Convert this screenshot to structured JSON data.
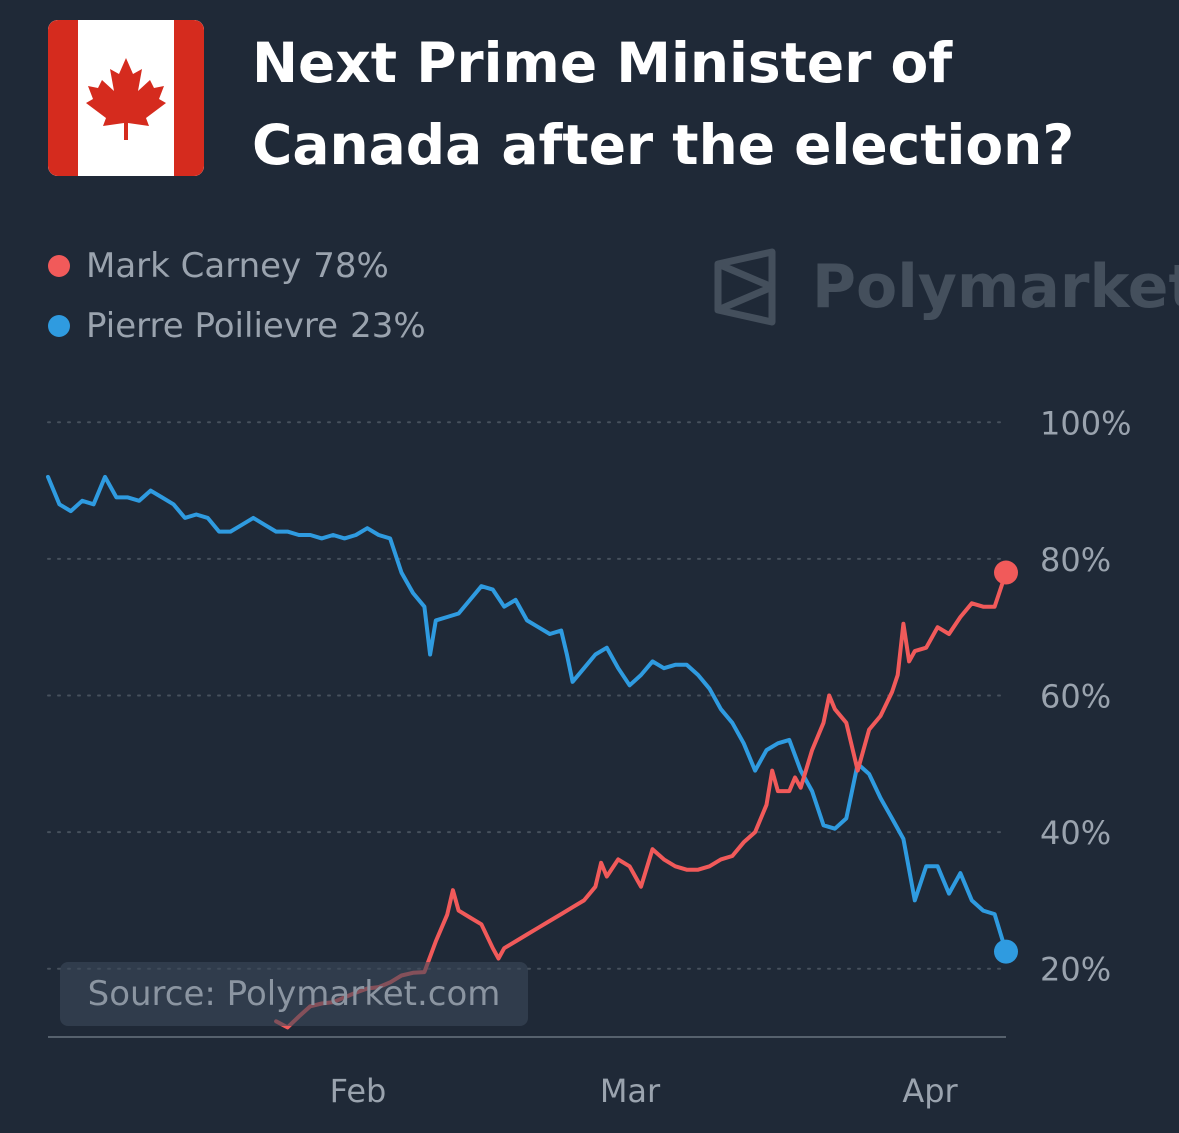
{
  "header": {
    "title": "Next Prime Minister of Canada after the election?",
    "flag_icon": "canada-flag-icon"
  },
  "brand": {
    "name": "Polymarket",
    "logo_icon": "polymarket-logo-icon"
  },
  "source_badge": "Source: Polymarket.com",
  "colors": {
    "background": "#1f2937",
    "carney": "#f15a5a",
    "poilievre": "#2f9be0",
    "axis_text": "#9aa3ae",
    "grid": "#46505c"
  },
  "chart_data": {
    "type": "line",
    "title": "Next Prime Minister of Canada after the election?",
    "xlabel": "",
    "ylabel": "",
    "x_ticks": [
      "Feb",
      "Mar",
      "Apr"
    ],
    "y_ticks": [
      "100%",
      "80%",
      "60%",
      "40%",
      "20%"
    ],
    "ylim": [
      10,
      100
    ],
    "grid": true,
    "legend_position": "top-left",
    "series": [
      {
        "name": "Mark Carney",
        "current_label": "78%",
        "color": "#f15a5a",
        "points": [
          [
            20,
            12.3
          ],
          [
            21,
            11.4
          ],
          [
            22,
            13.0
          ],
          [
            23,
            14.5
          ],
          [
            24,
            14.9
          ],
          [
            25,
            15.1
          ],
          [
            26,
            15.8
          ],
          [
            27,
            16.5
          ],
          [
            28,
            17.1
          ],
          [
            29,
            17.3
          ],
          [
            30,
            18.0
          ],
          [
            31,
            19.0
          ],
          [
            32,
            19.4
          ],
          [
            33,
            19.5
          ],
          [
            34,
            24.0
          ],
          [
            35,
            27.9
          ],
          [
            35.5,
            31.5
          ],
          [
            36,
            28.5
          ],
          [
            37,
            27.5
          ],
          [
            38,
            26.5
          ],
          [
            39,
            23.0
          ],
          [
            39.5,
            21.5
          ],
          [
            40,
            23.0
          ],
          [
            41,
            24.0
          ],
          [
            42,
            25.0
          ],
          [
            43,
            26.0
          ],
          [
            44,
            27.0
          ],
          [
            45,
            28.0
          ],
          [
            46,
            29.0
          ],
          [
            47,
            30.0
          ],
          [
            48,
            32.0
          ],
          [
            48.5,
            35.5
          ],
          [
            49,
            33.5
          ],
          [
            50,
            36.0
          ],
          [
            51,
            35.0
          ],
          [
            52,
            32.0
          ],
          [
            53,
            37.5
          ],
          [
            54,
            36.0
          ],
          [
            55,
            35.0
          ],
          [
            56,
            34.5
          ],
          [
            57,
            34.5
          ],
          [
            58,
            35.0
          ],
          [
            59,
            36.0
          ],
          [
            60,
            36.5
          ],
          [
            61,
            38.5
          ],
          [
            62,
            40.0
          ],
          [
            63,
            44.0
          ],
          [
            63.5,
            49.0
          ],
          [
            64,
            46.0
          ],
          [
            65,
            46.0
          ],
          [
            65.5,
            48.0
          ],
          [
            66,
            46.5
          ],
          [
            67,
            52.0
          ],
          [
            68,
            56.0
          ],
          [
            68.5,
            60.0
          ],
          [
            69,
            58.0
          ],
          [
            70,
            56.0
          ],
          [
            71,
            49.0
          ],
          [
            72,
            55.0
          ],
          [
            73,
            57.0
          ],
          [
            74,
            60.5
          ],
          [
            74.5,
            63.0
          ],
          [
            75,
            70.5
          ],
          [
            75.5,
            65.0
          ],
          [
            76,
            66.5
          ],
          [
            77,
            67.0
          ],
          [
            78,
            70.0
          ],
          [
            79,
            69.0
          ],
          [
            80,
            71.5
          ],
          [
            81,
            73.5
          ],
          [
            82,
            73.0
          ],
          [
            83,
            73.0
          ],
          [
            84,
            78.0
          ]
        ]
      },
      {
        "name": "Pierre Poilievre",
        "current_label": "23%",
        "color": "#2f9be0",
        "points": [
          [
            0,
            92.0
          ],
          [
            1,
            88.0
          ],
          [
            2,
            87.0
          ],
          [
            3,
            88.5
          ],
          [
            4,
            88.0
          ],
          [
            5,
            92.0
          ],
          [
            6,
            89.0
          ],
          [
            7,
            89.0
          ],
          [
            8,
            88.5
          ],
          [
            9,
            90.0
          ],
          [
            10,
            89.0
          ],
          [
            11,
            88.0
          ],
          [
            12,
            86.0
          ],
          [
            13,
            86.5
          ],
          [
            14,
            86.0
          ],
          [
            15,
            84.0
          ],
          [
            16,
            84.0
          ],
          [
            17,
            85.0
          ],
          [
            18,
            86.0
          ],
          [
            19,
            85.0
          ],
          [
            20,
            84.0
          ],
          [
            21,
            84.0
          ],
          [
            22,
            83.5
          ],
          [
            23,
            83.5
          ],
          [
            24,
            83.0
          ],
          [
            25,
            83.5
          ],
          [
            26,
            83.0
          ],
          [
            27,
            83.5
          ],
          [
            28,
            84.5
          ],
          [
            29,
            83.5
          ],
          [
            30,
            83.0
          ],
          [
            31,
            78.0
          ],
          [
            32,
            75.0
          ],
          [
            33,
            73.0
          ],
          [
            33.5,
            66.0
          ],
          [
            34,
            71.0
          ],
          [
            35,
            71.5
          ],
          [
            36,
            72.0
          ],
          [
            37,
            74.0
          ],
          [
            38,
            76.0
          ],
          [
            39,
            75.5
          ],
          [
            40,
            73.0
          ],
          [
            41,
            74.0
          ],
          [
            42,
            71.0
          ],
          [
            43,
            70.0
          ],
          [
            44,
            69.0
          ],
          [
            45,
            69.5
          ],
          [
            45.5,
            66.0
          ],
          [
            46,
            62.0
          ],
          [
            47,
            64.0
          ],
          [
            48,
            66.0
          ],
          [
            49,
            67.0
          ],
          [
            50,
            64.0
          ],
          [
            51,
            61.5
          ],
          [
            52,
            63.0
          ],
          [
            53,
            65.0
          ],
          [
            54,
            64.0
          ],
          [
            55,
            64.5
          ],
          [
            56,
            64.5
          ],
          [
            57,
            63.0
          ],
          [
            58,
            61.0
          ],
          [
            59,
            58.0
          ],
          [
            60,
            56.0
          ],
          [
            61,
            53.0
          ],
          [
            62,
            49.0
          ],
          [
            63,
            52.0
          ],
          [
            64,
            53.0
          ],
          [
            65,
            53.5
          ],
          [
            66,
            49.0
          ],
          [
            67,
            46.0
          ],
          [
            68,
            41.0
          ],
          [
            69,
            40.5
          ],
          [
            70,
            42.0
          ],
          [
            71,
            50.0
          ],
          [
            72,
            48.5
          ],
          [
            73,
            45.0
          ],
          [
            74,
            42.0
          ],
          [
            75,
            39.0
          ],
          [
            76,
            30.0
          ],
          [
            77,
            35.0
          ],
          [
            78,
            35.0
          ],
          [
            79,
            31.0
          ],
          [
            80,
            34.0
          ],
          [
            81,
            30.0
          ],
          [
            82,
            28.5
          ],
          [
            83,
            28.0
          ],
          [
            84,
            22.5
          ]
        ]
      }
    ]
  }
}
